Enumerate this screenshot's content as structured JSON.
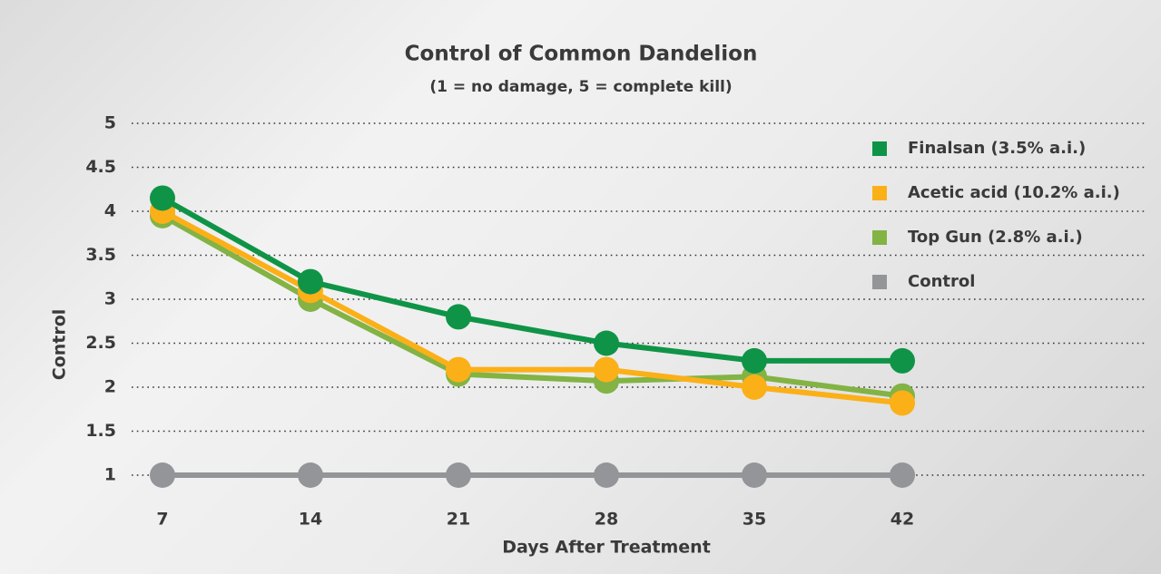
{
  "chart_data": {
    "type": "line",
    "title": "Control of Common Dandelion",
    "subtitle": "(1 = no damage, 5 = complete kill)",
    "x_label": "Days After Treatment",
    "y_label": "Control",
    "categories": [
      "7",
      "14",
      "21",
      "28",
      "35",
      "42"
    ],
    "series": [
      {
        "name": "Finalsan (3.5% a.i.)",
        "color": "#0f9447",
        "values": [
          4.15,
          3.2,
          2.8,
          2.5,
          2.3,
          2.3
        ]
      },
      {
        "name": "Acetic acid (10.2% a.i.)",
        "color": "#fbb018",
        "values": [
          4.0,
          3.1,
          2.2,
          2.2,
          2.0,
          1.82
        ]
      },
      {
        "name": "Top Gun (2.8% a.i.)",
        "color": "#82b344",
        "values": [
          3.95,
          3.0,
          2.15,
          2.07,
          2.12,
          1.9
        ]
      },
      {
        "name": "Control",
        "color": "#939598",
        "values": [
          1,
          1,
          1,
          1,
          1,
          1
        ]
      }
    ],
    "ylim": [
      1,
      5
    ],
    "yticks": [
      1,
      1.5,
      2,
      2.5,
      3,
      3.5,
      4,
      4.5,
      5
    ],
    "grid": true,
    "legend": "top-right"
  }
}
